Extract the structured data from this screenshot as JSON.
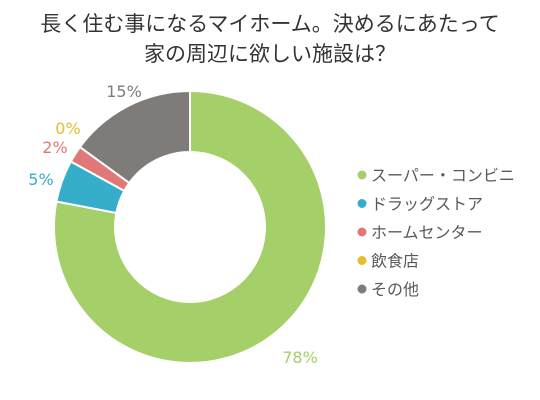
{
  "chart_data": {
    "type": "pie",
    "variant": "donut",
    "title": [
      "長く住む事になるマイホーム。決めるにあたって",
      "家の周辺に欲しい施設は？"
    ],
    "categories": [
      "スーパー・コンビニ",
      "ドラッグストア",
      "ホームセンター",
      "飲食店",
      "その他"
    ],
    "values": [
      78,
      5,
      2,
      0,
      15
    ],
    "labels": [
      "78%",
      "5%",
      "2%",
      "0%",
      "15%"
    ],
    "colors": [
      "#a5cf69",
      "#36aecb",
      "#e07878",
      "#e6bd2c",
      "#7f7b79"
    ],
    "legend": "right"
  }
}
